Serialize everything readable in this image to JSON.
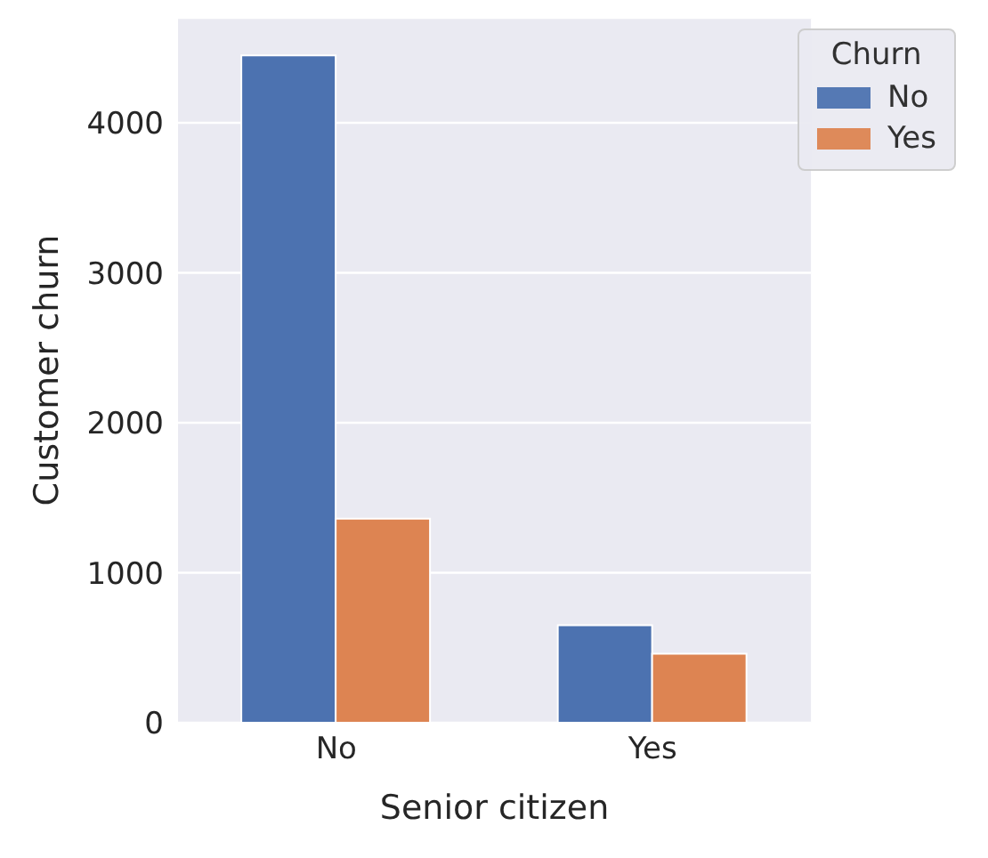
{
  "chart_data": {
    "type": "bar",
    "xlabel": "Senior citizen",
    "ylabel": "Customer churn",
    "legend_title": "Churn",
    "categories": [
      "No",
      "Yes"
    ],
    "series": [
      {
        "name": "No",
        "color": "#4c72b0",
        "values": [
          4450,
          650
        ]
      },
      {
        "name": "Yes",
        "color": "#dd8452",
        "values": [
          1360,
          460
        ]
      }
    ],
    "ylim": [
      0,
      4700
    ],
    "yticks": [
      0,
      1000,
      2000,
      3000,
      4000
    ],
    "grid": "y",
    "legend": "top right"
  }
}
